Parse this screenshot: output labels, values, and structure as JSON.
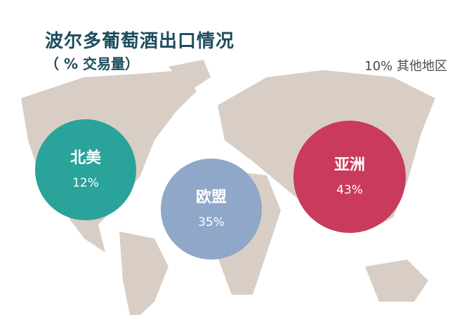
{
  "chart_data": {
    "type": "bubble",
    "title": "波尔多葡萄酒出口情况",
    "subtitle": "（ % 交易量）",
    "other": {
      "label": "其他地区",
      "value": 10,
      "text": "10% 其他地区"
    },
    "series": [
      {
        "name": "北美",
        "value": 12,
        "text": "12%",
        "color": "#2aa39a"
      },
      {
        "name": "欧盟",
        "value": 35,
        "text": "35%",
        "color": "#8fa7c8"
      },
      {
        "name": "亚洲",
        "value": 43,
        "text": "43%",
        "color": "#c93a5c"
      }
    ],
    "background": "world-map",
    "map_color": "#d9cec5"
  }
}
